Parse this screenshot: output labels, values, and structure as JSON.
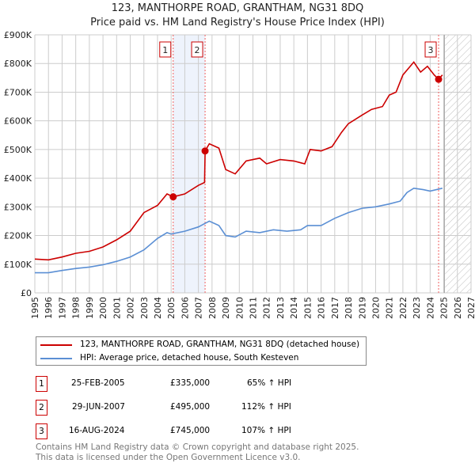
{
  "chart_data": {
    "type": "line",
    "title": "123, MANTHORPE ROAD, GRANTHAM, NG31 8DQ",
    "subtitle": "Price paid vs. HM Land Registry's House Price Index (HPI)",
    "xlim": [
      1995,
      2027
    ],
    "ylim": [
      0,
      900000
    ],
    "x_ticks": [
      "1995",
      "1996",
      "1997",
      "1998",
      "1999",
      "2000",
      "2001",
      "2002",
      "2003",
      "2004",
      "2005",
      "2006",
      "2007",
      "2008",
      "2009",
      "2010",
      "2011",
      "2012",
      "2013",
      "2014",
      "2015",
      "2016",
      "2017",
      "2018",
      "2019",
      "2020",
      "2021",
      "2022",
      "2023",
      "2024",
      "2025",
      "2026",
      "2027"
    ],
    "y_ticks": [
      {
        "v": 0,
        "label": "£0"
      },
      {
        "v": 100000,
        "label": "£100K"
      },
      {
        "v": 200000,
        "label": "£200K"
      },
      {
        "v": 300000,
        "label": "£300K"
      },
      {
        "v": 400000,
        "label": "£400K"
      },
      {
        "v": 500000,
        "label": "£500K"
      },
      {
        "v": 600000,
        "label": "£600K"
      },
      {
        "v": 700000,
        "label": "£700K"
      },
      {
        "v": 800000,
        "label": "£800K"
      },
      {
        "v": 900000,
        "label": "£900K"
      }
    ],
    "grid": true,
    "shaded_range": [
      2005.15,
      2007.49
    ],
    "forecast_hatch_from": 2025.1,
    "series": [
      {
        "name": "123, MANTHORPE ROAD, GRANTHAM, NG31 8DQ (detached house)",
        "color": "#cc0000",
        "x": [
          1995,
          1996,
          1997,
          1998,
          1999,
          2000,
          2001,
          2002,
          2003,
          2004,
          2004.7,
          2005.15,
          2006,
          2007,
          2007.45,
          2007.49,
          2007.8,
          2008.5,
          2009,
          2009.7,
          2010.5,
          2011.5,
          2012,
          2013,
          2014,
          2014.8,
          2015.2,
          2016,
          2016.8,
          2017.5,
          2018,
          2019,
          2019.7,
          2020.5,
          2021,
          2021.5,
          2022,
          2022.8,
          2023.3,
          2023.8,
          2024.3,
          2024.62,
          2024.9
        ],
        "y": [
          118000,
          115000,
          125000,
          138000,
          145000,
          160000,
          185000,
          215000,
          280000,
          305000,
          345000,
          335000,
          345000,
          375000,
          385000,
          495000,
          520000,
          505000,
          430000,
          415000,
          460000,
          470000,
          450000,
          465000,
          460000,
          450000,
          500000,
          495000,
          510000,
          560000,
          590000,
          620000,
          640000,
          650000,
          690000,
          700000,
          760000,
          805000,
          770000,
          790000,
          760000,
          745000,
          760000
        ]
      },
      {
        "name": "HPI: Average price, detached house, South Kesteven",
        "color": "#5b8fd4",
        "x": [
          1995,
          1996,
          1997,
          1998,
          1999,
          2000,
          2001,
          2002,
          2003,
          2004,
          2004.7,
          2005,
          2006,
          2007,
          2007.8,
          2008.5,
          2009,
          2009.7,
          2010.5,
          2011.5,
          2012.5,
          2013.5,
          2014.5,
          2015,
          2016,
          2017,
          2018,
          2019,
          2020,
          2021,
          2021.8,
          2022.3,
          2022.8,
          2023.5,
          2024,
          2024.9
        ],
        "y": [
          70000,
          70000,
          78000,
          85000,
          90000,
          98000,
          110000,
          125000,
          150000,
          190000,
          210000,
          205000,
          215000,
          230000,
          250000,
          235000,
          200000,
          195000,
          215000,
          210000,
          220000,
          215000,
          220000,
          235000,
          235000,
          260000,
          280000,
          295000,
          300000,
          310000,
          320000,
          350000,
          365000,
          360000,
          355000,
          365000
        ]
      }
    ],
    "sales": [
      {
        "n": "1",
        "x": 2005.15,
        "y": 335000,
        "date": "25-FEB-2005",
        "price": "£335,000",
        "hpi": "65% ↑ HPI"
      },
      {
        "n": "2",
        "x": 2007.49,
        "y": 495000,
        "date": "29-JUN-2007",
        "price": "£495,000",
        "hpi": "112% ↑ HPI"
      },
      {
        "n": "3",
        "x": 2024.62,
        "y": 745000,
        "date": "16-AUG-2024",
        "price": "£745,000",
        "hpi": "107% ↑ HPI"
      }
    ]
  },
  "footer": {
    "line1": "Contains HM Land Registry data © Crown copyright and database right 2025.",
    "line2": "This data is licensed under the Open Government Licence v3.0."
  }
}
